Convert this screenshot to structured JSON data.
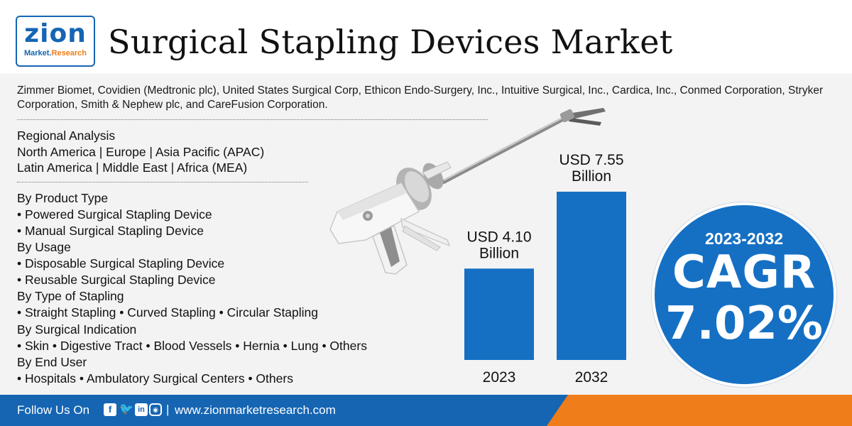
{
  "header": {
    "logo_text_zion": "zion",
    "logo_text_sub_a": "Market.",
    "logo_text_sub_b": "Research",
    "title": "Surgical Stapling Devices Market"
  },
  "companies": "Zimmer Biomet, Covidien (Medtronic plc), United States Surgical Corp, Ethicon Endo-Surgery, Inc., Intuitive Surgical, Inc., Cardica, Inc., Conmed Corporation, Stryker Corporation, Smith & Nephew plc, and CareFusion Corporation.",
  "regional": {
    "heading": "Regional Analysis",
    "line1": "North America | Europe | Asia Pacific (APAC)",
    "line2": "Latin America | Middle East | Africa (MEA)"
  },
  "segments": {
    "product_type": {
      "heading": "By Product Type",
      "items": [
        "• Powered Surgical Stapling Device",
        "• Manual Surgical Stapling Device"
      ]
    },
    "usage": {
      "heading": "By Usage",
      "items": [
        "• Disposable Surgical Stapling Device",
        "• Reusable Surgical Stapling Device"
      ]
    },
    "stapling_type": {
      "heading": "By Type of Stapling",
      "line": "• Straight Stapling • Curved Stapling • Circular Stapling"
    },
    "surgical_indication": {
      "heading": "By Surgical Indication",
      "line": "• Skin • Digestive Tract • Blood Vessels • Hernia • Lung • Others"
    },
    "end_user": {
      "heading": "By End User",
      "line": "• Hospitals • Ambulatory Surgical Centers • Others"
    }
  },
  "chart_data": {
    "type": "bar",
    "categories": [
      "2023",
      "2032"
    ],
    "values": [
      4.1,
      7.55
    ],
    "value_labels": [
      [
        "USD 4.10",
        "Billion"
      ],
      [
        "USD 7.55",
        "Billion"
      ]
    ],
    "unit": "USD Billion",
    "color": "#1570c4",
    "ylim": [
      0,
      7.55
    ]
  },
  "cagr": {
    "period": "2023-2032",
    "label": "CAGR",
    "value": "7.02%"
  },
  "footer": {
    "follow": "Follow Us On",
    "pipe": "|",
    "website": "www.zionmarketresearch.com",
    "social_icons": [
      "facebook-icon",
      "twitter-icon",
      "linkedin-icon",
      "instagram-icon"
    ]
  },
  "colors": {
    "brand_blue": "#1565b3",
    "accent_orange": "#ef7d1a",
    "bar_blue": "#1570c4"
  }
}
